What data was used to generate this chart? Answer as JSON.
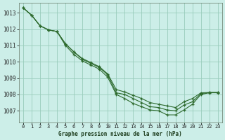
{
  "title": "Graphe pression niveau de la mer (hPa)",
  "bg_color": "#cceee8",
  "grid_color": "#99ccbb",
  "line_color": "#2d6a2d",
  "xlim": [
    -0.5,
    23.5
  ],
  "ylim": [
    1006.3,
    1013.6
  ],
  "yticks": [
    1007,
    1008,
    1009,
    1010,
    1011,
    1012,
    1013
  ],
  "xticks": [
    0,
    1,
    2,
    3,
    4,
    5,
    6,
    7,
    8,
    9,
    10,
    11,
    12,
    13,
    14,
    15,
    16,
    17,
    18,
    19,
    20,
    21,
    22,
    23
  ],
  "series": [
    [
      1013.3,
      1012.9,
      1012.5,
      1011.95,
      1011.85,
      1011.0,
      1010.45,
      1010.05,
      1009.8,
      1009.55,
      1009.1,
      1008.05,
      1007.95,
      1007.6,
      1007.35,
      1007.1,
      1007.05,
      1006.75,
      1006.75,
      1007.05,
      1007.4,
      1008.0,
      1008.1,
      1008.1
    ],
    [
      1013.3,
      1012.9,
      1012.5,
      1011.95,
      1011.85,
      1011.15,
      1010.65,
      1010.2,
      1009.95,
      1009.7,
      1009.2,
      1008.15,
      1007.95,
      1007.65,
      1007.4,
      1007.15,
      1007.1,
      1006.8,
      1006.8,
      1007.0,
      1007.45,
      1008.05,
      1008.1,
      1008.1
    ],
    [
      1013.3,
      1012.9,
      1012.5,
      1011.95,
      1011.85,
      1011.05,
      1010.5,
      1010.1,
      1009.85,
      1009.6,
      1009.15,
      1008.1,
      1007.85,
      1007.6,
      1007.35,
      1007.1,
      1007.05,
      1006.78,
      1006.78,
      1007.08,
      1007.42,
      1008.02,
      1008.1,
      1008.1
    ]
  ],
  "series_fan": [
    [
      1013.3,
      1012.85,
      1012.2,
      1011.95,
      1011.85,
      1011.05,
      1010.5,
      1010.1,
      1009.85,
      1009.6,
      1009.15,
      1008.1,
      1007.85,
      1007.6,
      1007.35,
      1007.1,
      1007.05,
      1006.78,
      1006.78,
      1007.08,
      1007.42,
      1008.02,
      1008.12,
      1008.12
    ],
    [
      1013.3,
      1012.85,
      1012.2,
      1011.92,
      1011.85,
      1011.1,
      1010.6,
      1010.15,
      1009.9,
      1009.65,
      1009.15,
      1008.1,
      1008.0,
      1007.8,
      1007.55,
      1007.3,
      1007.25,
      1007.1,
      1007.05,
      1007.35,
      1007.55,
      1008.05,
      1008.12,
      1008.12
    ],
    [
      1013.3,
      1012.85,
      1012.2,
      1011.92,
      1011.85,
      1011.1,
      1010.6,
      1010.15,
      1009.9,
      1009.65,
      1009.15,
      1008.3,
      1008.15,
      1008.0,
      1007.75,
      1007.5,
      1007.4,
      1007.3,
      1007.25,
      1007.55,
      1007.75,
      1008.1,
      1008.12,
      1008.12
    ]
  ]
}
